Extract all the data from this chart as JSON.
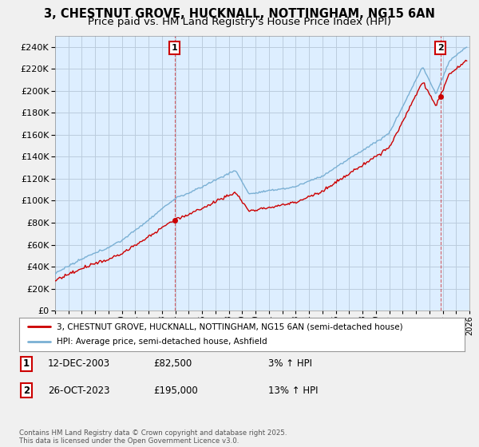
{
  "title": "3, CHESTNUT GROVE, HUCKNALL, NOTTINGHAM, NG15 6AN",
  "subtitle": "Price paid vs. HM Land Registry's House Price Index (HPI)",
  "ylim": [
    0,
    250000
  ],
  "yticks": [
    0,
    20000,
    40000,
    60000,
    80000,
    100000,
    120000,
    140000,
    160000,
    180000,
    200000,
    220000,
    240000
  ],
  "xlim_start": 1995.0,
  "xlim_end": 2026.0,
  "sale1_date": 2003.95,
  "sale1_price": 82500,
  "sale2_date": 2023.82,
  "sale2_price": 195000,
  "legend_line1": "3, CHESTNUT GROVE, HUCKNALL, NOTTINGHAM, NG15 6AN (semi-detached house)",
  "legend_line2": "HPI: Average price, semi-detached house, Ashfield",
  "annotation1_label": "1",
  "annotation1_date": "12-DEC-2003",
  "annotation1_price": "£82,500",
  "annotation1_hpi": "3% ↑ HPI",
  "annotation2_label": "2",
  "annotation2_date": "26-OCT-2023",
  "annotation2_price": "£195,000",
  "annotation2_hpi": "13% ↑ HPI",
  "copyright": "Contains HM Land Registry data © Crown copyright and database right 2025.\nThis data is licensed under the Open Government Licence v3.0.",
  "line_red": "#cc0000",
  "line_blue": "#7ab0d4",
  "fill_blue": "#ddeeff",
  "bg_color": "#f0f0f0",
  "plot_bg": "#ddeeff",
  "grid_color": "#bbccdd",
  "title_fontsize": 10.5,
  "subtitle_fontsize": 9.5
}
